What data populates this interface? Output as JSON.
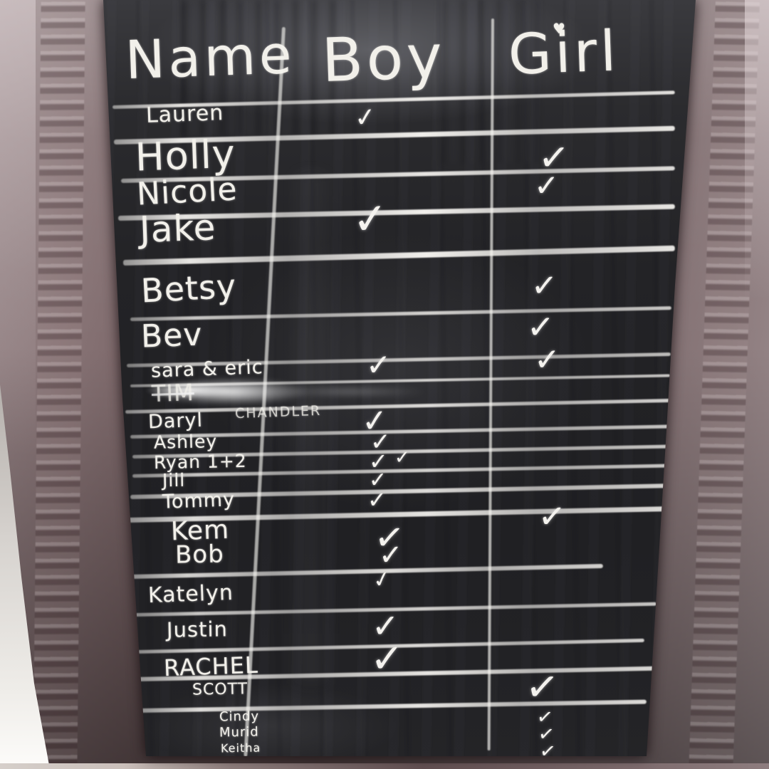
{
  "board": {
    "headers": {
      "name": "Name",
      "boy": "Boy",
      "girl": "Girl"
    },
    "decorations": {
      "heart_over_girl_i": "♥"
    },
    "symbols": {
      "check": "✓"
    },
    "rows": [
      {
        "name": "Lauren",
        "boy": 1,
        "girl": 0
      },
      {
        "name": "Holly",
        "boy": 0,
        "girl": 1
      },
      {
        "name": "Nicole",
        "boy": 0,
        "girl": 1
      },
      {
        "name": "Jake",
        "boy": 1,
        "girl": 0
      },
      {
        "name": "Betsy",
        "boy": 0,
        "girl": 1
      },
      {
        "name": "Bev",
        "boy": 0,
        "girl": 1
      },
      {
        "name": "sara & eric",
        "boy": 1,
        "girl": 1
      },
      {
        "name": "TIM",
        "boy": 0,
        "girl": 0,
        "state": "smudged-out"
      },
      {
        "name": "Daryl",
        "extra": "CHANDLER",
        "boy": 1,
        "girl": 0
      },
      {
        "name": "Ashley",
        "boy": 1,
        "girl": 0
      },
      {
        "name": "Ryan 1+2",
        "boy": 2,
        "girl": 0
      },
      {
        "name": "Jill",
        "boy": 1,
        "girl": 0
      },
      {
        "name": "Tommy",
        "boy": 1,
        "girl": 1
      },
      {
        "name": "Kem",
        "boy": 1,
        "girl": 0
      },
      {
        "name": "Bob",
        "boy": 1,
        "girl": 0
      },
      {
        "name": "Katelyn",
        "boy": 1,
        "girl": 0
      },
      {
        "name": "Justin",
        "boy": 1,
        "girl": 0
      },
      {
        "name": "RACHEL",
        "boy": 1,
        "girl": 0
      },
      {
        "name": "SCOTT",
        "boy": 0,
        "girl": 1
      },
      {
        "name": "Cindy",
        "boy": 0,
        "girl": 1
      },
      {
        "name": "Murid",
        "boy": 0,
        "girl": 1
      },
      {
        "name": "Keitha",
        "boy": 0,
        "girl": 1
      }
    ]
  },
  "colors": {
    "chalk": "#f2f0ea",
    "board": "#222225",
    "frame": "#7b6567",
    "wall": "#e8e6e2"
  }
}
